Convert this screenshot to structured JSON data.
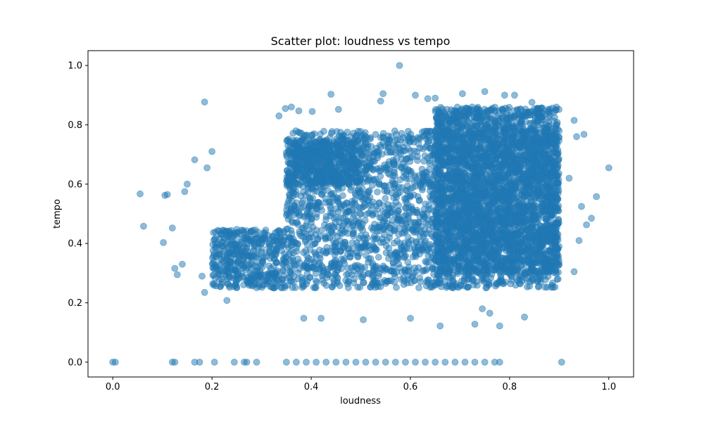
{
  "chart_data": {
    "type": "scatter",
    "title": "Scatter plot: loudness vs tempo",
    "xlabel": "loudness",
    "ylabel": "tempo",
    "xlim": [
      -0.05,
      1.05
    ],
    "ylim": [
      -0.05,
      1.05
    ],
    "xticks": [
      {
        "value": 0.0,
        "label": "0.0"
      },
      {
        "value": 0.2,
        "label": "0.2"
      },
      {
        "value": 0.4,
        "label": "0.4"
      },
      {
        "value": 0.6,
        "label": "0.6"
      },
      {
        "value": 0.8,
        "label": "0.8"
      },
      {
        "value": 1.0,
        "label": "1.0"
      }
    ],
    "yticks": [
      {
        "value": 0.0,
        "label": "0.0"
      },
      {
        "value": 0.2,
        "label": "0.2"
      },
      {
        "value": 0.4,
        "label": "0.4"
      },
      {
        "value": 0.6,
        "label": "0.6"
      },
      {
        "value": 0.8,
        "label": "0.8"
      },
      {
        "value": 1.0,
        "label": "1.0"
      }
    ],
    "grid": false,
    "legend": false,
    "marker_color": "#1f77b4",
    "marker_alpha": 0.5,
    "series": [
      {
        "points": [
          [
            0.578,
            1.0
          ],
          [
            0.0,
            0.0
          ],
          [
            0.005,
            0.0
          ],
          [
            1.0,
            0.655
          ],
          [
            0.975,
            0.558
          ],
          [
            0.055,
            0.567
          ],
          [
            0.062,
            0.458
          ],
          [
            0.12,
            0.452
          ],
          [
            0.102,
            0.403
          ],
          [
            0.105,
            0.562
          ],
          [
            0.11,
            0.565
          ],
          [
            0.145,
            0.575
          ],
          [
            0.15,
            0.6
          ],
          [
            0.165,
            0.682
          ],
          [
            0.185,
            0.877
          ],
          [
            0.19,
            0.655
          ],
          [
            0.2,
            0.71
          ],
          [
            0.125,
            0.316
          ],
          [
            0.13,
            0.295
          ],
          [
            0.14,
            0.33
          ],
          [
            0.18,
            0.29
          ],
          [
            0.185,
            0.235
          ],
          [
            0.23,
            0.208
          ],
          [
            0.335,
            0.83
          ],
          [
            0.348,
            0.855
          ],
          [
            0.36,
            0.86
          ],
          [
            0.375,
            0.847
          ],
          [
            0.402,
            0.845
          ],
          [
            0.44,
            0.903
          ],
          [
            0.455,
            0.852
          ],
          [
            0.54,
            0.88
          ],
          [
            0.545,
            0.905
          ],
          [
            0.61,
            0.9
          ],
          [
            0.635,
            0.888
          ],
          [
            0.65,
            0.89
          ],
          [
            0.705,
            0.905
          ],
          [
            0.75,
            0.912
          ],
          [
            0.79,
            0.9
          ],
          [
            0.81,
            0.9
          ],
          [
            0.845,
            0.876
          ],
          [
            0.385,
            0.148
          ],
          [
            0.42,
            0.148
          ],
          [
            0.505,
            0.143
          ],
          [
            0.6,
            0.148
          ],
          [
            0.66,
            0.122
          ],
          [
            0.73,
            0.128
          ],
          [
            0.745,
            0.18
          ],
          [
            0.76,
            0.165
          ],
          [
            0.78,
            0.122
          ],
          [
            0.83,
            0.152
          ],
          [
            0.905,
            0.0
          ],
          [
            0.93,
            0.305
          ],
          [
            0.94,
            0.41
          ],
          [
            0.945,
            0.525
          ],
          [
            0.95,
            0.768
          ],
          [
            0.955,
            0.463
          ],
          [
            0.935,
            0.76
          ],
          [
            0.93,
            0.815
          ],
          [
            0.92,
            0.62
          ],
          [
            0.965,
            0.485
          ],
          [
            0.12,
            0.0
          ],
          [
            0.125,
            0.0
          ],
          [
            0.165,
            0.0
          ],
          [
            0.175,
            0.0
          ],
          [
            0.205,
            0.0
          ],
          [
            0.245,
            0.0
          ],
          [
            0.265,
            0.0
          ],
          [
            0.27,
            0.0
          ],
          [
            0.29,
            0.0
          ],
          [
            0.35,
            0.0
          ],
          [
            0.37,
            0.0
          ],
          [
            0.39,
            0.0
          ],
          [
            0.41,
            0.0
          ],
          [
            0.43,
            0.0
          ],
          [
            0.45,
            0.0
          ],
          [
            0.47,
            0.0
          ],
          [
            0.49,
            0.0
          ],
          [
            0.51,
            0.0
          ],
          [
            0.53,
            0.0
          ],
          [
            0.55,
            0.0
          ],
          [
            0.57,
            0.0
          ],
          [
            0.59,
            0.0
          ],
          [
            0.61,
            0.0
          ],
          [
            0.63,
            0.0
          ],
          [
            0.65,
            0.0
          ],
          [
            0.67,
            0.0
          ],
          [
            0.69,
            0.0
          ],
          [
            0.71,
            0.0
          ],
          [
            0.73,
            0.0
          ],
          [
            0.75,
            0.0
          ],
          [
            0.77,
            0.0
          ],
          [
            0.78,
            0.0
          ]
        ],
        "dense_regions": [
          {
            "x_range": [
              0.35,
              0.9
            ],
            "y_range": [
              0.25,
              0.78
            ],
            "density": "very high"
          },
          {
            "x_range": [
              0.65,
              0.9
            ],
            "y_range": [
              0.3,
              0.86
            ],
            "density": "very high"
          },
          {
            "x_range": [
              0.2,
              0.35
            ],
            "y_range": [
              0.25,
              0.45
            ],
            "density": "medium"
          },
          {
            "x_range": [
              0.35,
              0.5
            ],
            "y_range": [
              0.6,
              0.75
            ],
            "density": "medium"
          }
        ]
      }
    ]
  }
}
